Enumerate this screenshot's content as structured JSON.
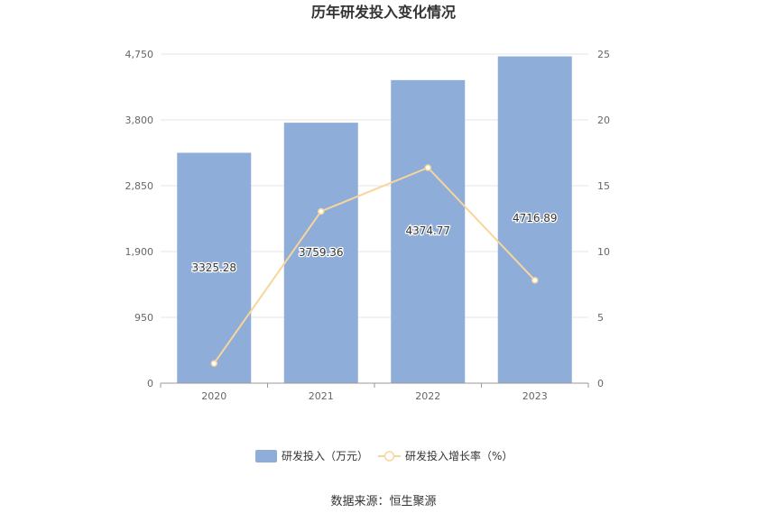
{
  "chart_data": {
    "type": "bar",
    "title": "历年研发投入变化情况",
    "categories": [
      "2020",
      "2021",
      "2022",
      "2023"
    ],
    "series": [
      {
        "name": "研发投入（万元）",
        "type": "bar",
        "axis": "left",
        "color": "#8eadd9",
        "values": [
          3325.28,
          3759.36,
          4374.77,
          4716.89
        ],
        "value_labels": [
          "3325.28",
          "3759.36",
          "4374.77",
          "4716.89"
        ]
      },
      {
        "name": "研发投入增长率（%）",
        "type": "line",
        "axis": "right",
        "color": "#f8d59a",
        "values": [
          1.5,
          13.05,
          16.37,
          7.82
        ]
      }
    ],
    "y_left": {
      "ylim": [
        0,
        4750
      ],
      "ticks": [
        "0",
        "950",
        "1,900",
        "2,850",
        "3,800",
        "4,750"
      ]
    },
    "y_right": {
      "ylim": [
        0,
        25
      ],
      "ticks": [
        "0",
        "5",
        "10",
        "15",
        "20",
        "25"
      ]
    },
    "grid": true,
    "legend_position": "bottom-center",
    "source_note": "数据来源：恒生聚源"
  }
}
